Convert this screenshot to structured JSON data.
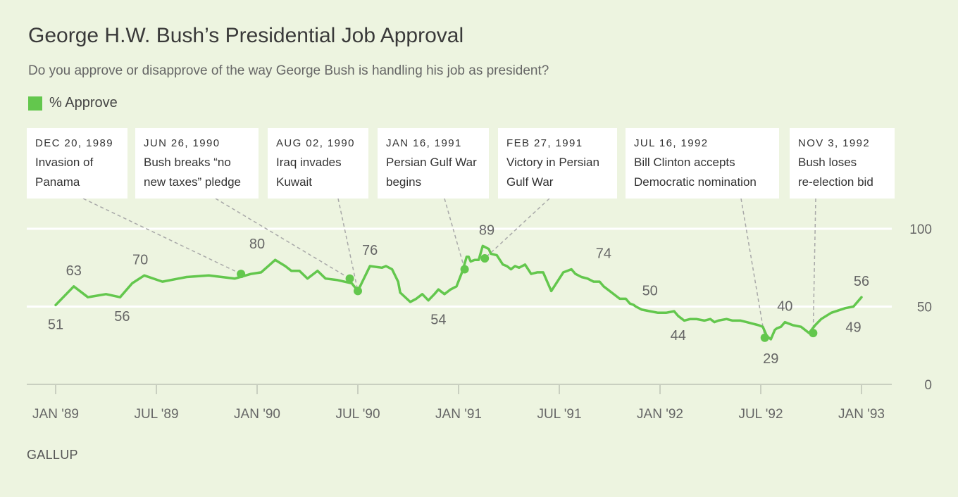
{
  "title": "George H.W. Bush’s Presidential Job Approval",
  "subtitle": "Do you approve or disapprove of the way George Bush is handling his job as president?",
  "source": "GALLUP",
  "colors": {
    "background": "#edf4e0",
    "line": "#63c74d",
    "text": "#666666",
    "grid": "#ffffff",
    "leader": "#a8a8a8"
  },
  "chart_data": {
    "type": "line",
    "title": "George H.W. Bush’s Presidential Job Approval",
    "legend": [
      {
        "name": "% Approve",
        "color": "#63c74d"
      }
    ],
    "legend_position": "top-left",
    "ylim": [
      0,
      100
    ],
    "y_ticks": [
      {
        "value": 0,
        "label": "0"
      },
      {
        "value": 50,
        "label": "50"
      },
      {
        "value": 100,
        "label": "100"
      }
    ],
    "x_ticks": [
      {
        "t": 1989.0,
        "label": "JAN '89"
      },
      {
        "t": 1989.5,
        "label": "JUL '89"
      },
      {
        "t": 1990.0,
        "label": "JAN '90"
      },
      {
        "t": 1990.5,
        "label": "JUL '90"
      },
      {
        "t": 1991.0,
        "label": "JAN '91"
      },
      {
        "t": 1991.5,
        "label": "JUL '91"
      },
      {
        "t": 1992.0,
        "label": "JAN '92"
      },
      {
        "t": 1992.5,
        "label": "JUL '92"
      },
      {
        "t": 1993.0,
        "label": "JAN '93"
      }
    ],
    "series": [
      {
        "name": "% Approve",
        "x": [
          1989.0,
          1989.09,
          1989.16,
          1989.25,
          1989.32,
          1989.38,
          1989.44,
          1989.53,
          1989.65,
          1989.76,
          1989.89,
          1989.97,
          1990.02,
          1990.09,
          1990.14,
          1990.17,
          1990.21,
          1990.25,
          1990.3,
          1990.34,
          1990.4,
          1990.47,
          1990.5,
          1990.56,
          1990.62,
          1990.64,
          1990.67,
          1990.7,
          1990.71,
          1990.76,
          1990.79,
          1990.82,
          1990.85,
          1990.88,
          1990.9,
          1990.93,
          1990.96,
          1990.99,
          1991.02,
          1991.04,
          1991.05,
          1991.06,
          1991.08,
          1991.1,
          1991.12,
          1991.15,
          1991.16,
          1991.19,
          1991.22,
          1991.24,
          1991.26,
          1991.28,
          1991.3,
          1991.33,
          1991.36,
          1991.39,
          1991.42,
          1991.46,
          1991.52,
          1991.54,
          1991.56,
          1991.58,
          1991.61,
          1991.64,
          1991.67,
          1991.7,
          1991.72,
          1991.75,
          1991.8,
          1991.83,
          1991.85,
          1991.87,
          1991.88,
          1991.91,
          1991.95,
          1991.99,
          1992.03,
          1992.07,
          1992.09,
          1992.12,
          1992.15,
          1992.18,
          1992.22,
          1992.25,
          1992.27,
          1992.29,
          1992.33,
          1992.36,
          1992.4,
          1992.43,
          1992.46,
          1992.49,
          1992.51,
          1992.53,
          1992.55,
          1992.57,
          1992.58,
          1992.6,
          1992.62,
          1992.66,
          1992.7,
          1992.74,
          1992.77,
          1992.8,
          1992.85,
          1992.92,
          1992.96,
          1993.0
        ],
        "values": [
          51,
          63,
          56,
          58,
          56,
          65,
          70,
          66,
          69,
          70,
          68,
          71,
          72,
          80,
          76,
          73,
          73,
          68,
          73,
          68,
          67,
          65,
          60,
          76,
          75,
          76,
          74,
          66,
          59,
          53,
          55,
          58,
          54,
          58,
          61,
          58,
          61,
          63,
          73,
          82,
          82,
          79,
          80,
          80,
          89,
          87,
          84,
          83,
          77,
          76,
          74,
          76,
          75,
          77,
          71,
          72,
          72,
          60,
          72,
          73,
          74,
          71,
          69,
          68,
          66,
          66,
          63,
          60,
          55,
          55,
          52,
          51,
          50,
          48,
          47,
          46,
          46,
          47,
          44,
          41,
          42,
          42,
          41,
          42,
          40,
          41,
          42,
          41,
          41,
          40,
          39,
          38,
          37,
          31,
          29,
          35,
          36,
          37,
          40,
          38,
          37,
          33,
          38,
          42,
          46,
          49,
          50,
          56
        ]
      }
    ],
    "data_labels": [
      {
        "text": "51",
        "t": 1989.0,
        "v": 51,
        "pos": "below"
      },
      {
        "text": "63",
        "t": 1989.09,
        "v": 63,
        "pos": "above"
      },
      {
        "text": "56",
        "t": 1989.33,
        "v": 56,
        "pos": "below"
      },
      {
        "text": "70",
        "t": 1989.42,
        "v": 70,
        "pos": "above"
      },
      {
        "text": "80",
        "t": 1990.0,
        "v": 80,
        "pos": "above"
      },
      {
        "text": "76",
        "t": 1990.56,
        "v": 76,
        "pos": "above"
      },
      {
        "text": "54",
        "t": 1990.9,
        "v": 54,
        "pos": "below"
      },
      {
        "text": "89",
        "t": 1991.14,
        "v": 89,
        "pos": "above"
      },
      {
        "text": "74",
        "t": 1991.72,
        "v": 74,
        "pos": "above"
      },
      {
        "text": "50",
        "t": 1991.95,
        "v": 50,
        "pos": "above"
      },
      {
        "text": "44",
        "t": 1992.09,
        "v": 44,
        "pos": "below"
      },
      {
        "text": "29",
        "t": 1992.55,
        "v": 29,
        "pos": "below"
      },
      {
        "text": "40",
        "t": 1992.62,
        "v": 40,
        "pos": "above"
      },
      {
        "text": "56",
        "t": 1993.0,
        "v": 56,
        "pos": "above"
      },
      {
        "text": "49",
        "t": 1992.96,
        "v": 49,
        "pos": "below"
      }
    ],
    "annotations": [
      {
        "date": "DEC 20, 1989",
        "line1": "Invasion of",
        "line2": "Panama",
        "t": 1989.92,
        "v": 71
      },
      {
        "date": "JUN 26, 1990",
        "line1": "Bush breaks “no",
        "line2": "new taxes” pledge",
        "t": 1990.46,
        "v": 68
      },
      {
        "date": "AUG 02, 1990",
        "line1": "Iraq invades",
        "line2": "Kuwait",
        "t": 1990.5,
        "v": 60
      },
      {
        "date": "JAN 16, 1991",
        "line1": "Persian Gulf War",
        "line2": "begins",
        "t": 1991.03,
        "v": 74
      },
      {
        "date": "FEB 27, 1991",
        "line1": "Victory in Persian",
        "line2": "Gulf War",
        "t": 1991.13,
        "v": 81
      },
      {
        "date": "JUL 16, 1992",
        "line1": "Bill Clinton accepts",
        "line2": "Democratic nomination",
        "t": 1992.52,
        "v": 30
      },
      {
        "date": "NOV 3, 1992",
        "line1": "Bush loses",
        "line2": "re-election bid",
        "t": 1992.76,
        "v": 33
      }
    ]
  }
}
